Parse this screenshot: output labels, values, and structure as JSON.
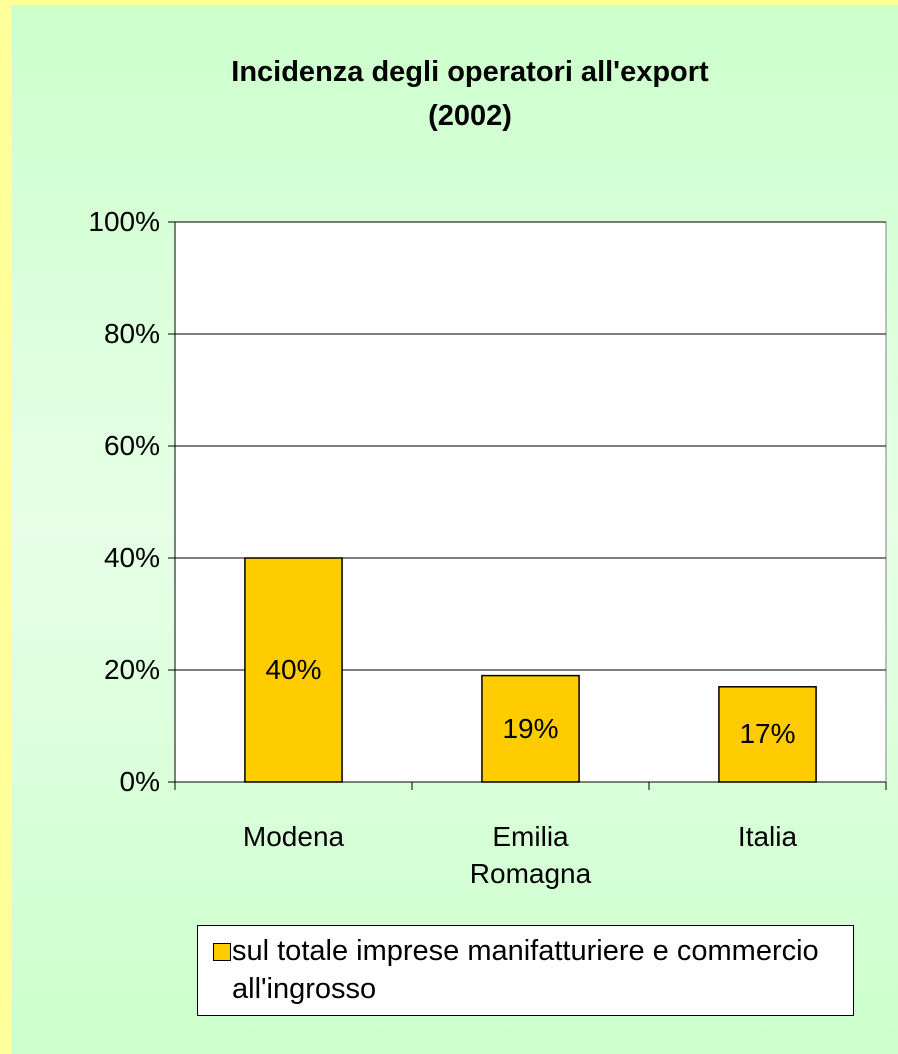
{
  "chart_data": {
    "type": "bar",
    "title": "Incidenza degli operatori all'export\n(2002)",
    "categories": [
      "Modena",
      "Emilia Romagna",
      "Italia"
    ],
    "series": [
      {
        "name": "sul totale imprese manifatturiere e commercio all'ingrosso",
        "color": "#ffcc00",
        "values": [
          40,
          19,
          17
        ],
        "value_labels": [
          "40%",
          "19%",
          "17%"
        ]
      }
    ],
    "ylim": [
      0,
      100
    ],
    "yticks": [
      {
        "value": 0,
        "label": "0%"
      },
      {
        "value": 20,
        "label": "20%"
      },
      {
        "value": 40,
        "label": "40%"
      },
      {
        "value": 60,
        "label": "60%"
      },
      {
        "value": 80,
        "label": "80%"
      },
      {
        "value": 100,
        "label": "100%"
      }
    ],
    "grid": true,
    "legend": "bottom"
  }
}
